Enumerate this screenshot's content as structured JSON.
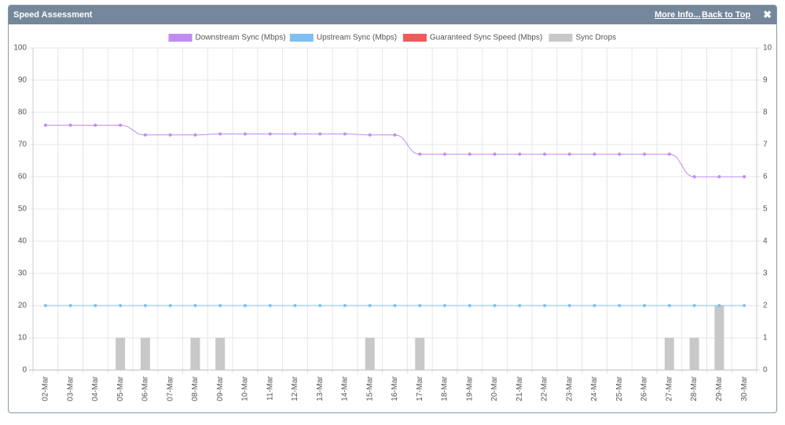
{
  "header": {
    "title": "Speed Assessment",
    "more_info": "More Info...",
    "back_to_top": "Back to Top",
    "close": "✖"
  },
  "chart_data": {
    "type": "line",
    "categories": [
      "02-Mar",
      "03-Mar",
      "04-Mar",
      "05-Mar",
      "06-Mar",
      "07-Mar",
      "08-Mar",
      "09-Mar",
      "10-Mar",
      "11-Mar",
      "12-Mar",
      "13-Mar",
      "14-Mar",
      "15-Mar",
      "16-Mar",
      "17-Mar",
      "18-Mar",
      "19-Mar",
      "20-Mar",
      "21-Mar",
      "22-Mar",
      "23-Mar",
      "24-Mar",
      "25-Mar",
      "26-Mar",
      "27-Mar",
      "28-Mar",
      "29-Mar",
      "30-Mar"
    ],
    "series": [
      {
        "name": "Downstream Sync (Mbps)",
        "color": "#bf8cf2",
        "type": "line",
        "values": [
          76,
          76,
          76,
          76,
          73,
          73,
          73,
          73.3,
          73.3,
          73.3,
          73.3,
          73.3,
          73.3,
          73,
          73,
          67,
          67,
          67,
          67,
          67,
          67,
          67,
          67,
          67,
          67,
          67,
          60,
          60,
          60
        ]
      },
      {
        "name": "Upstream Sync (Mbps)",
        "color": "#80bff2",
        "type": "line",
        "values": [
          20,
          20,
          20,
          20,
          20,
          20,
          20,
          20,
          20,
          20,
          20,
          20,
          20,
          20,
          20,
          20,
          20,
          20,
          20,
          20,
          20,
          20,
          20,
          20,
          20,
          20,
          20,
          20,
          20
        ]
      },
      {
        "name": "Guaranteed Sync Speed (Mbps)",
        "color": "#f05a5a",
        "type": "line",
        "values": [
          null,
          null,
          null,
          null,
          null,
          null,
          null,
          null,
          null,
          null,
          null,
          null,
          null,
          null,
          null,
          null,
          null,
          null,
          null,
          null,
          null,
          null,
          null,
          null,
          null,
          null,
          null,
          null,
          null
        ]
      },
      {
        "name": "Sync Drops",
        "color": "#c8c8c8",
        "type": "bar",
        "axis": "y2",
        "values": [
          0,
          0,
          0,
          1,
          1,
          0,
          1,
          1,
          0,
          0,
          0,
          0,
          0,
          1,
          0,
          1,
          0,
          0,
          0,
          0,
          0,
          0,
          0,
          0,
          0,
          1,
          1,
          2,
          0
        ]
      }
    ],
    "ylim": [
      0,
      100
    ],
    "yticks": [
      0,
      10,
      20,
      30,
      40,
      50,
      60,
      70,
      80,
      90,
      100
    ],
    "y2lim": [
      0,
      10
    ],
    "y2ticks": [
      0,
      1,
      2,
      3,
      4,
      5,
      6,
      7,
      8,
      9,
      10
    ],
    "grid": true,
    "legend": "top"
  }
}
